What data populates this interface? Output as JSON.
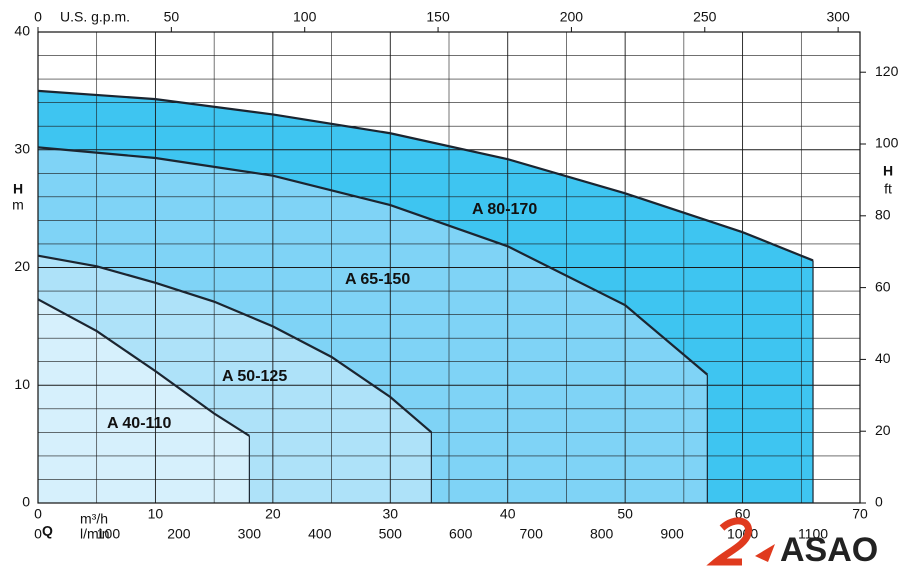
{
  "chart_data": {
    "type": "area",
    "xlabel": "Q",
    "xunit": "m³/h",
    "x3unit": "l/min",
    "x2label": "U.S. g.p.m.",
    "ylabel": "H",
    "yunit": "m",
    "y2label": "H",
    "y2unit": "ft",
    "xlim": [
      0,
      70
    ],
    "xticks": [
      0,
      10,
      20,
      30,
      40,
      50,
      60,
      70
    ],
    "x2lim": [
      0,
      308.2
    ],
    "x2ticks": [
      0,
      50,
      100,
      150,
      200,
      250,
      300
    ],
    "x3lim": [
      0,
      1166.7
    ],
    "x3ticks": [
      0,
      100,
      200,
      300,
      400,
      500,
      600,
      700,
      800,
      900,
      1000,
      1100
    ],
    "ylim": [
      0,
      40
    ],
    "yticks": [
      0,
      10,
      20,
      30,
      40
    ],
    "y2lim": [
      0,
      131.2
    ],
    "y2ticks": [
      0,
      20,
      40,
      60,
      80,
      100,
      120
    ],
    "grid": true,
    "series": [
      {
        "name": "A 80-170",
        "color": "#3ec5f1",
        "x": [
          0,
          10,
          20,
          30,
          40,
          50,
          60,
          66
        ],
        "values": [
          35,
          34.3,
          33,
          31.4,
          29.2,
          26.3,
          23,
          20.6
        ]
      },
      {
        "name": "A 65-150",
        "color": "#7fd3f6",
        "x": [
          0,
          10,
          20,
          30,
          40,
          50,
          57
        ],
        "values": [
          30.2,
          29.3,
          27.8,
          25.3,
          21.8,
          16.8,
          10.9
        ]
      },
      {
        "name": "A 50-125",
        "color": "#aee2f9",
        "x": [
          0,
          5,
          10,
          15,
          20,
          25,
          30,
          33.5
        ],
        "values": [
          21,
          20.1,
          18.7,
          17.1,
          15,
          12.4,
          9,
          6
        ]
      },
      {
        "name": "A 40-110",
        "color": "#d6f0fc",
        "x": [
          0,
          5,
          10,
          15,
          18
        ],
        "values": [
          17.3,
          14.6,
          11.2,
          7.6,
          5.7
        ]
      }
    ]
  },
  "brand": "ASAO"
}
